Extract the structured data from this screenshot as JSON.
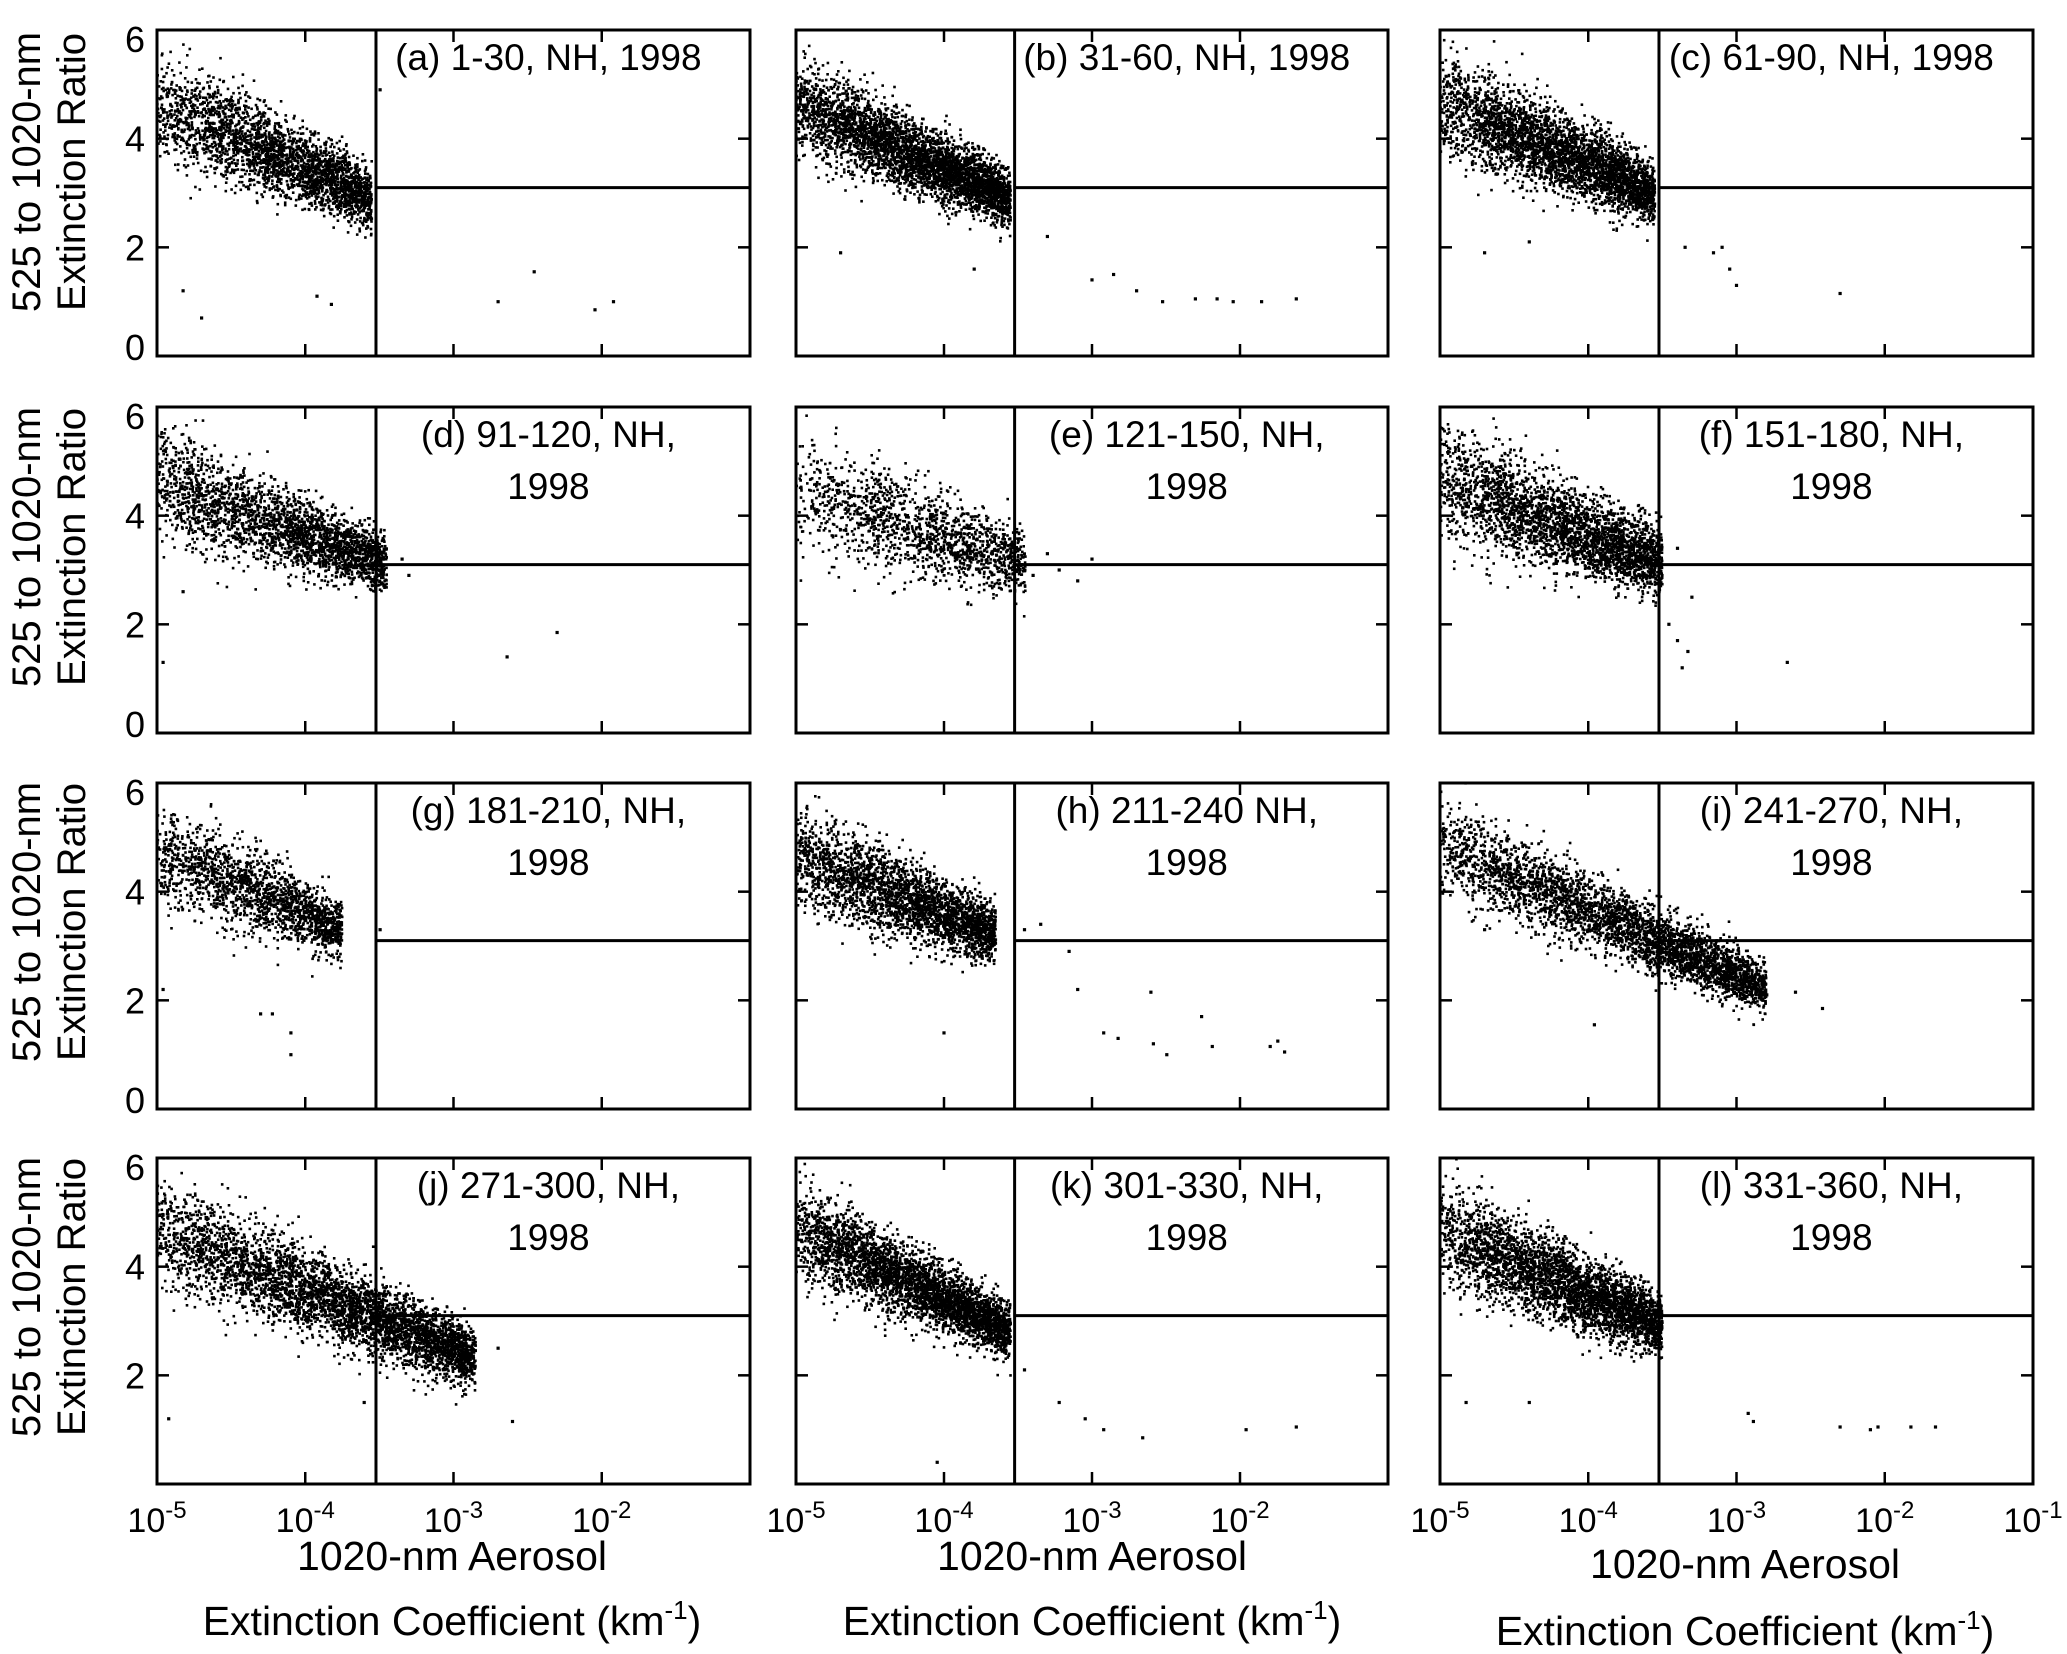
{
  "x_axis": {
    "label_line1": "1020-nm Aerosol",
    "label_line2_prefix": "Extinction Coefficient (km",
    "label_line2_sup": "-1",
    "label_line2_suffix": ")",
    "tick_base": "10",
    "tick_exponents": [
      "-5",
      "-4",
      "-3",
      "-2",
      "-1"
    ],
    "scale": "log",
    "range": [
      1e-05,
      0.1
    ]
  },
  "y_axis": {
    "label_line1": "525 to 1020-nm",
    "label_line2": "Extinction Ratio",
    "range": [
      0,
      6
    ]
  },
  "chart_data": [
    {
      "type": "scatter",
      "panel": "a",
      "title": [
        "(a) 1-30, NH, 1998"
      ],
      "x_range": [
        1e-05,
        0.1
      ],
      "y_range": [
        0,
        6
      ],
      "y_ticks": [
        "0",
        "2",
        "4",
        "6"
      ],
      "x_ticks_shown": false,
      "vline_x": 0.0003,
      "hline_y": 3.1,
      "cloud": {
        "n": 2800,
        "x_log_range": [
          -5.0,
          -3.55
        ],
        "y_at_start": 4.7,
        "y_at_end": 2.9,
        "spread": 0.45
      },
      "outliers": [
        [
          0.002,
          1.0
        ],
        [
          0.0035,
          1.55
        ],
        [
          0.009,
          0.85
        ],
        [
          0.012,
          1.0
        ],
        [
          1.5e-05,
          1.2
        ],
        [
          2e-05,
          0.7
        ],
        [
          0.00012,
          1.1
        ],
        [
          0.00015,
          0.95
        ],
        [
          0.00032,
          4.9
        ]
      ]
    },
    {
      "type": "scatter",
      "panel": "b",
      "title": [
        "(b) 31-60, NH, 1998"
      ],
      "x_range": [
        1e-05,
        0.1
      ],
      "y_range": [
        0,
        6
      ],
      "y_ticks": [],
      "x_ticks_shown": false,
      "vline_x": 0.0003,
      "hline_y": 3.1,
      "cloud": {
        "n": 4000,
        "x_log_range": [
          -5.0,
          -3.55
        ],
        "y_at_start": 4.7,
        "y_at_end": 2.9,
        "spread": 0.4
      },
      "outliers": [
        [
          0.0005,
          2.2
        ],
        [
          0.001,
          1.4
        ],
        [
          0.0014,
          1.5
        ],
        [
          0.002,
          1.2
        ],
        [
          0.003,
          1.0
        ],
        [
          0.005,
          1.05
        ],
        [
          0.007,
          1.05
        ],
        [
          0.009,
          1.0
        ],
        [
          0.014,
          1.0
        ],
        [
          0.024,
          1.05
        ],
        [
          0.00016,
          1.6
        ],
        [
          2e-05,
          1.9
        ]
      ]
    },
    {
      "type": "scatter",
      "panel": "c",
      "title": [
        "(c) 61-90, NH, 1998"
      ],
      "x_range": [
        1e-05,
        0.1
      ],
      "y_range": [
        0,
        6
      ],
      "y_ticks": [],
      "x_ticks_shown": false,
      "vline_x": 0.0003,
      "hline_y": 3.1,
      "cloud": {
        "n": 3600,
        "x_log_range": [
          -5.0,
          -3.55
        ],
        "y_at_start": 4.7,
        "y_at_end": 3.0,
        "spread": 0.45
      },
      "outliers": [
        [
          0.00045,
          2.0
        ],
        [
          0.0007,
          1.9
        ],
        [
          0.0008,
          2.0
        ],
        [
          0.0009,
          1.6
        ],
        [
          0.001,
          1.3
        ],
        [
          0.005,
          1.15
        ],
        [
          2e-05,
          1.9
        ],
        [
          4e-05,
          2.1
        ]
      ]
    },
    {
      "type": "scatter",
      "panel": "d",
      "title": [
        "(d) 91-120, NH,",
        "1998"
      ],
      "x_range": [
        1e-05,
        0.1
      ],
      "y_range": [
        0,
        6
      ],
      "y_ticks": [
        "0",
        "2",
        "4",
        "6"
      ],
      "x_ticks_shown": false,
      "vline_x": 0.0003,
      "hline_y": 3.1,
      "cloud": {
        "n": 2600,
        "x_log_range": [
          -5.0,
          -3.45
        ],
        "y_at_start": 4.7,
        "y_at_end": 3.1,
        "spread": 0.45
      },
      "outliers": [
        [
          0.0023,
          1.4
        ],
        [
          0.005,
          1.85
        ],
        [
          0.00045,
          3.2
        ],
        [
          0.0005,
          2.9
        ],
        [
          1.1e-05,
          1.3
        ],
        [
          1.5e-05,
          2.6
        ]
      ]
    },
    {
      "type": "scatter",
      "panel": "e",
      "title": [
        "(e) 121-150, NH,",
        "1998"
      ],
      "x_range": [
        1e-05,
        0.1
      ],
      "y_range": [
        0,
        6
      ],
      "y_ticks": [],
      "x_ticks_shown": false,
      "vline_x": 0.0003,
      "hline_y": 3.1,
      "cloud": {
        "n": 1500,
        "x_log_range": [
          -5.0,
          -3.45
        ],
        "y_at_start": 4.5,
        "y_at_end": 3.1,
        "spread": 0.5
      },
      "outliers": [
        [
          0.0005,
          3.3
        ],
        [
          0.0006,
          3.0
        ],
        [
          0.0008,
          2.8
        ],
        [
          0.001,
          3.2
        ],
        [
          0.0004,
          2.9
        ]
      ]
    },
    {
      "type": "scatter",
      "panel": "f",
      "title": [
        "(f) 151-180, NH,",
        "1998"
      ],
      "x_range": [
        1e-05,
        0.1
      ],
      "y_range": [
        0,
        6
      ],
      "y_ticks": [],
      "x_ticks_shown": false,
      "vline_x": 0.0003,
      "hline_y": 3.1,
      "cloud": {
        "n": 3000,
        "x_log_range": [
          -5.0,
          -3.5
        ],
        "y_at_start": 4.7,
        "y_at_end": 3.1,
        "spread": 0.5
      },
      "outliers": [
        [
          0.00035,
          2.0
        ],
        [
          0.0004,
          1.7
        ],
        [
          0.00043,
          1.2
        ],
        [
          0.00047,
          1.5
        ],
        [
          0.0005,
          2.5
        ],
        [
          0.0022,
          1.3
        ],
        [
          0.0004,
          3.4
        ]
      ]
    },
    {
      "type": "scatter",
      "panel": "g",
      "title": [
        "(g) 181-210, NH,",
        "1998"
      ],
      "x_range": [
        1e-05,
        0.1
      ],
      "y_range": [
        0,
        6
      ],
      "y_ticks": [
        "0",
        "2",
        "4",
        "6"
      ],
      "x_ticks_shown": false,
      "vline_x": 0.0003,
      "hline_y": 3.1,
      "cloud": {
        "n": 1800,
        "x_log_range": [
          -5.0,
          -3.75
        ],
        "y_at_start": 4.8,
        "y_at_end": 3.3,
        "spread": 0.45
      },
      "outliers": [
        [
          5e-05,
          1.75
        ],
        [
          6e-05,
          1.75
        ],
        [
          8e-05,
          1.0
        ],
        [
          8e-05,
          1.4
        ],
        [
          0.00032,
          3.3
        ],
        [
          1.1e-05,
          2.2
        ]
      ]
    },
    {
      "type": "scatter",
      "panel": "h",
      "title": [
        "(h) 211-240 NH,",
        "1998"
      ],
      "x_range": [
        1e-05,
        0.1
      ],
      "y_range": [
        0,
        6
      ],
      "y_ticks": [],
      "x_ticks_shown": false,
      "vline_x": 0.0003,
      "hline_y": 3.1,
      "cloud": {
        "n": 2800,
        "x_log_range": [
          -5.0,
          -3.65
        ],
        "y_at_start": 4.7,
        "y_at_end": 3.2,
        "spread": 0.45
      },
      "outliers": [
        [
          0.00035,
          3.3
        ],
        [
          0.00045,
          3.4
        ],
        [
          0.0007,
          2.9
        ],
        [
          0.0008,
          2.2
        ],
        [
          0.0012,
          1.4
        ],
        [
          0.0015,
          1.3
        ],
        [
          0.0025,
          2.15
        ],
        [
          0.0026,
          1.2
        ],
        [
          0.0032,
          1.0
        ],
        [
          0.0055,
          1.7
        ],
        [
          0.0065,
          1.15
        ],
        [
          0.016,
          1.15
        ],
        [
          0.018,
          1.25
        ],
        [
          0.02,
          1.05
        ],
        [
          0.0001,
          1.4
        ]
      ]
    },
    {
      "type": "scatter",
      "panel": "i",
      "title": [
        "(i) 241-270, NH,",
        "1998"
      ],
      "x_range": [
        1e-05,
        0.1
      ],
      "y_range": [
        0,
        6
      ],
      "y_ticks": [],
      "x_ticks_shown": false,
      "vline_x": 0.0003,
      "hline_y": 3.1,
      "cloud": {
        "n": 3600,
        "x_log_range": [
          -5.0,
          -2.8
        ],
        "y_at_start": 4.9,
        "y_at_end": 2.2,
        "spread": 0.4
      },
      "outliers": [
        [
          0.0016,
          2.1
        ],
        [
          0.0025,
          2.15
        ],
        [
          0.0038,
          1.85
        ],
        [
          2e-05,
          3.3
        ],
        [
          0.00011,
          1.55
        ]
      ]
    },
    {
      "type": "scatter",
      "panel": "j",
      "title": [
        "(j) 271-300, NH,",
        "1998"
      ],
      "x_range": [
        1e-05,
        0.1
      ],
      "y_range": [
        0,
        6
      ],
      "y_ticks": [
        "2",
        "4",
        "6"
      ],
      "x_ticks_shown": true,
      "vline_x": 0.0003,
      "hline_y": 3.1,
      "cloud": {
        "n": 4200,
        "x_log_range": [
          -5.0,
          -2.85
        ],
        "y_at_start": 4.7,
        "y_at_end": 2.3,
        "spread": 0.45
      },
      "outliers": [
        [
          0.002,
          2.5
        ],
        [
          0.0025,
          1.15
        ],
        [
          0.00035,
          2.8
        ],
        [
          0.0004,
          3.3
        ],
        [
          0.0005,
          2.5
        ],
        [
          1.2e-05,
          1.2
        ],
        [
          0.00025,
          1.5
        ]
      ]
    },
    {
      "type": "scatter",
      "panel": "k",
      "title": [
        "(k) 301-330, NH,",
        "1998"
      ],
      "x_range": [
        1e-05,
        0.1
      ],
      "y_range": [
        0,
        6
      ],
      "y_ticks": [],
      "x_ticks_shown": true,
      "vline_x": 0.0003,
      "hline_y": 3.1,
      "cloud": {
        "n": 3600,
        "x_log_range": [
          -5.0,
          -3.55
        ],
        "y_at_start": 4.8,
        "y_at_end": 2.8,
        "spread": 0.4
      },
      "outliers": [
        [
          0.00035,
          2.1
        ],
        [
          0.0006,
          1.5
        ],
        [
          0.0009,
          1.2
        ],
        [
          0.0012,
          1.0
        ],
        [
          0.0022,
          0.85
        ],
        [
          0.011,
          1.0
        ],
        [
          0.024,
          1.05
        ],
        [
          9e-05,
          0.4
        ]
      ]
    },
    {
      "type": "scatter",
      "panel": "l",
      "title": [
        "(l) 331-360, NH,",
        "1998"
      ],
      "x_range": [
        1e-05,
        0.1
      ],
      "y_range": [
        0,
        6
      ],
      "y_ticks": [],
      "x_ticks_shown": true,
      "vline_x": 0.0003,
      "hline_y": 3.1,
      "cloud": {
        "n": 3600,
        "x_log_range": [
          -5.0,
          -3.5
        ],
        "y_at_start": 4.7,
        "y_at_end": 2.9,
        "spread": 0.45
      },
      "outliers": [
        [
          0.0012,
          1.3
        ],
        [
          0.0013,
          1.15
        ],
        [
          0.005,
          1.05
        ],
        [
          0.008,
          1.0
        ],
        [
          0.009,
          1.05
        ],
        [
          0.015,
          1.05
        ],
        [
          0.022,
          1.05
        ],
        [
          1.5e-05,
          1.5
        ],
        [
          4e-05,
          1.5
        ]
      ]
    }
  ]
}
